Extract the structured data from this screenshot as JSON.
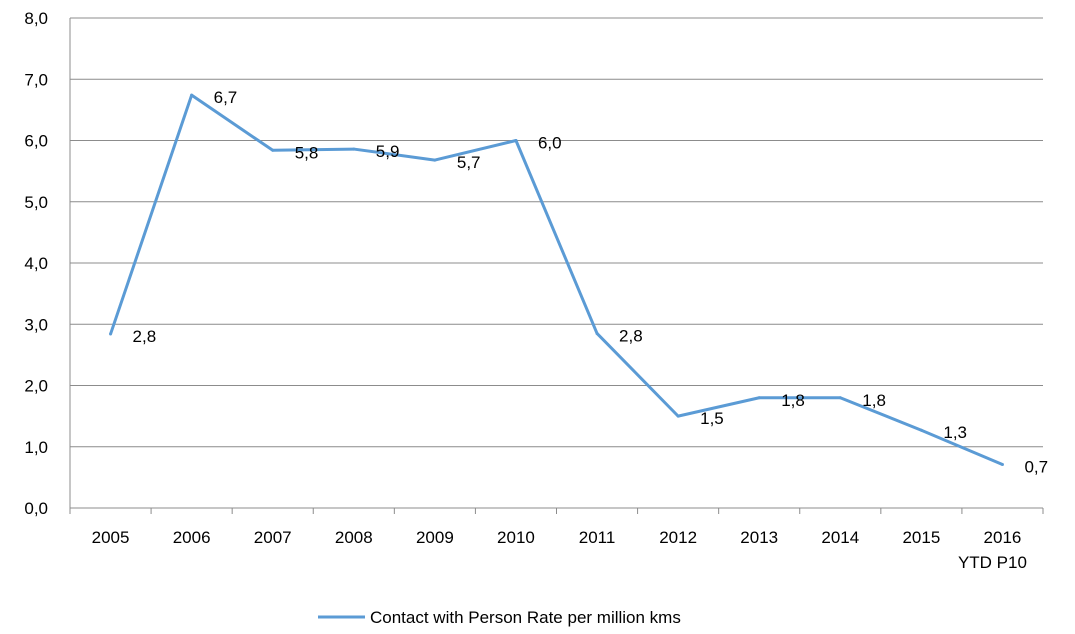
{
  "chart_data": {
    "type": "line",
    "title": "",
    "xlabel": "",
    "ylabel": "",
    "ylim": [
      0,
      8
    ],
    "yticks": [
      "0,0",
      "1,0",
      "2,0",
      "3,0",
      "4,0",
      "5,0",
      "6,0",
      "7,0",
      "8,0"
    ],
    "categories": [
      [
        "2005"
      ],
      [
        "2006"
      ],
      [
        "2007"
      ],
      [
        "2008"
      ],
      [
        "2009"
      ],
      [
        "2010"
      ],
      [
        "2011"
      ],
      [
        "2012"
      ],
      [
        "2013"
      ],
      [
        "2014"
      ],
      [
        "2015"
      ],
      [
        "2016",
        "YTD P10"
      ]
    ],
    "grid": true,
    "legend_position": "bottom",
    "series": [
      {
        "name": "Contact with Person Rate per million kms",
        "color": "#5b9bd5",
        "values": [
          2.84,
          6.74,
          5.84,
          5.86,
          5.68,
          6.0,
          2.85,
          1.5,
          1.8,
          1.8,
          1.27,
          0.71
        ],
        "data_labels": [
          "2,8",
          "6,7",
          "5,8",
          "5,9",
          "5,7",
          "6,0",
          "2,8",
          "1,5",
          "1,8",
          "1,8",
          "1,3",
          "0,7"
        ]
      }
    ]
  }
}
